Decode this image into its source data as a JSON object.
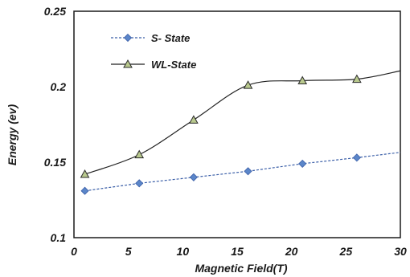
{
  "chart_data": {
    "type": "line",
    "xlabel": "Magnetic Field(T)",
    "ylabel": "Energy (ev)",
    "xlim": [
      0,
      30
    ],
    "ylim": [
      0.1,
      0.25
    ],
    "x_ticks": [
      "0",
      "5",
      "10",
      "15",
      "20",
      "25",
      "30"
    ],
    "y_ticks": [
      "0.1",
      "0.15",
      "0.2",
      "0.25"
    ],
    "grid": false,
    "legend_placement": "top-left",
    "series": [
      {
        "name": "S- State",
        "marker": "diamond",
        "line_style": "dashed",
        "color": "#5b86c9",
        "line_color": "#3b5fa8",
        "x": [
          1,
          6,
          11,
          16,
          21,
          26
        ],
        "y": [
          0.131,
          0.136,
          0.14,
          0.144,
          0.149,
          0.153
        ],
        "trend_end": {
          "x": 30,
          "y": 0.1565
        }
      },
      {
        "name": "WL-State",
        "marker": "triangle",
        "line_style": "solid",
        "color": "#b9c98e",
        "line_color": "#222222",
        "x": [
          1,
          6,
          11,
          16,
          21,
          26
        ],
        "y": [
          0.142,
          0.155,
          0.178,
          0.201,
          0.204,
          0.205
        ],
        "trend_end": {
          "x": 30,
          "y": 0.2105
        }
      }
    ]
  }
}
